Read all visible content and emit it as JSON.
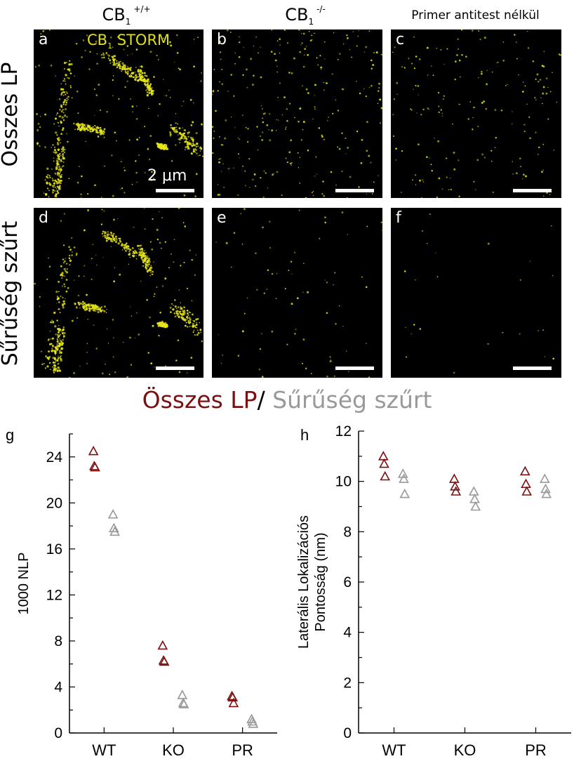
{
  "headers": {
    "col1": {
      "main": "CB",
      "sub": "1",
      "sup": "+/+"
    },
    "col2": {
      "main": "CB",
      "sub": "1",
      "sup": "-/-"
    },
    "col3": "Primer antitest nélkül"
  },
  "row_labels": [
    "Összes LP",
    "Sűrűség szűrt"
  ],
  "panel_labels": [
    "a",
    "b",
    "c",
    "d",
    "e",
    "f",
    "g",
    "h"
  ],
  "storm_label": {
    "main": "CB",
    "sub": "1",
    "rest": " STORM"
  },
  "scale_bar_label": "2 μm",
  "legend": {
    "part1": "Összes LP",
    "sep": "/ ",
    "part2": "Sűrűség szűrt"
  },
  "colors": {
    "all_lp": "#7b1010",
    "density_filtered": "#999999",
    "storm": "#e6e619"
  },
  "chart_data": [
    {
      "type": "scatter",
      "panel": "g",
      "categories": [
        "WT",
        "KO",
        "PR"
      ],
      "ylabel": "1000 NLP",
      "ylim": [
        0,
        26
      ],
      "yticks": [
        0,
        4,
        8,
        12,
        16,
        20,
        24
      ],
      "marker": "open-triangle",
      "series": [
        {
          "color": "#7b1010",
          "values": [
            [
              24.5,
              23.2,
              23.1
            ],
            [
              7.6,
              6.3,
              6.2
            ],
            [
              3.2,
              3.1,
              2.6
            ]
          ]
        },
        {
          "color": "#999999",
          "values": [
            [
              19.0,
              17.8,
              17.5
            ],
            [
              3.3,
              2.6,
              2.5
            ],
            [
              1.2,
              1.0,
              0.8
            ]
          ]
        }
      ]
    },
    {
      "type": "scatter",
      "panel": "h",
      "categories": [
        "WT",
        "KO",
        "PR"
      ],
      "ylabel": [
        "Laterális Lokalizációs",
        "Pontosság (nm)"
      ],
      "ylim": [
        0,
        12
      ],
      "yticks": [
        0,
        2,
        4,
        6,
        8,
        10,
        12
      ],
      "marker": "open-triangle",
      "series": [
        {
          "color": "#7b1010",
          "values": [
            [
              11.0,
              10.7,
              10.2
            ],
            [
              10.1,
              9.8,
              9.6
            ],
            [
              10.4,
              9.9,
              9.6
            ]
          ]
        },
        {
          "color": "#999999",
          "values": [
            [
              10.3,
              10.1,
              9.5
            ],
            [
              9.6,
              9.3,
              9.0
            ],
            [
              10.1,
              9.7,
              9.5
            ]
          ]
        }
      ]
    }
  ]
}
